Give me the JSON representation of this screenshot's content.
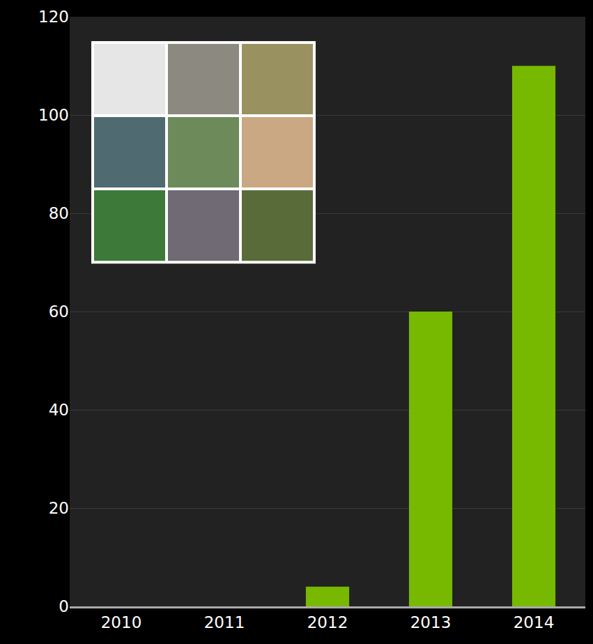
{
  "chart_data": {
    "type": "bar",
    "categories": [
      "2010",
      "2011",
      "2012",
      "2013",
      "2014"
    ],
    "values": [
      0,
      0,
      4,
      60,
      110
    ],
    "color": "#76b900",
    "ylim": [
      0,
      120
    ],
    "yticks": [
      0,
      20,
      40,
      60,
      80,
      100,
      120
    ],
    "grid": true
  }
}
